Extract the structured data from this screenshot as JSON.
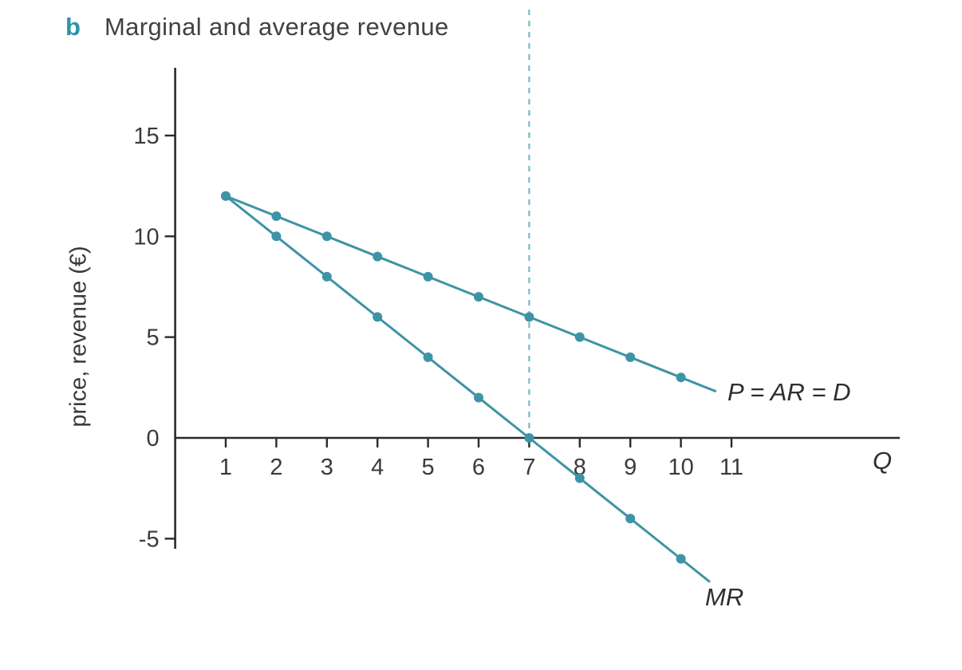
{
  "figure": {
    "panel_label": "b",
    "title": "Marginal and average revenue"
  },
  "chart_data": {
    "type": "line",
    "title": "Marginal and average revenue",
    "xlabel": "Q",
    "ylabel": "price, revenue (€)",
    "x": [
      1,
      2,
      3,
      4,
      5,
      6,
      7,
      8,
      9,
      10
    ],
    "series": [
      {
        "name": "P = AR = D",
        "values": [
          12,
          11,
          10,
          9,
          8,
          7,
          6,
          5,
          4,
          3
        ]
      },
      {
        "name": "MR",
        "values": [
          12,
          10,
          8,
          6,
          4,
          2,
          0,
          -2,
          -4,
          -6
        ]
      }
    ],
    "x_ticks": [
      1,
      2,
      3,
      4,
      5,
      6,
      7,
      8,
      9,
      10,
      11
    ],
    "y_ticks": [
      15,
      10,
      5,
      0,
      -5
    ],
    "xlim": [
      0,
      14.3
    ],
    "ylim": [
      -5.5,
      18.3
    ],
    "dashed_vline_x": 7,
    "grid": false,
    "legend_position": "inline-labels",
    "colors": {
      "line": "#3e93a6",
      "marker": "#3e93a6",
      "dashed_guide": "#7ab8c6",
      "axis": "#2b2a2a",
      "panel_label": "#2d93ab"
    }
  }
}
